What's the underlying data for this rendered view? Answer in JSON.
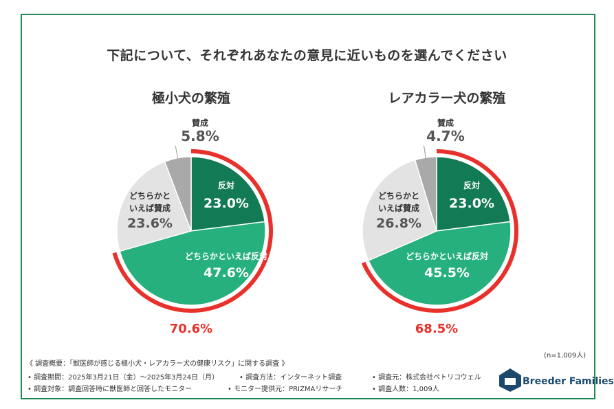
{
  "main_title": "下記について、それぞれあなたの意見に近いものを選んでください",
  "sample_size": "(n=1,009人)",
  "colors": {
    "frame": "#1f8a55",
    "hantai": "#127a55",
    "dochira_hantai": "#26b07d",
    "dochira_sansei": "#e3e3e3",
    "sansei": "#a9a9a9",
    "highlight": "#e8312b",
    "logo": "#1c4a6e"
  },
  "chart_data": [
    {
      "type": "pie",
      "title": "極小犬の繁殖",
      "slices": [
        {
          "label": "反対",
          "value": 23.0,
          "value_text": "23.0%"
        },
        {
          "label": "どちらかといえば反対",
          "value": 47.6,
          "value_text": "47.6%"
        },
        {
          "label": "どちらかと\nいえば賛成",
          "value": 23.6,
          "value_text": "23.6%"
        },
        {
          "label": "賛成",
          "value": 5.8,
          "value_text": "5.8%"
        }
      ],
      "highlight_total": 70.6,
      "highlight_text": "70.6%"
    },
    {
      "type": "pie",
      "title": "レアカラー犬の繁殖",
      "slices": [
        {
          "label": "反対",
          "value": 23.0,
          "value_text": "23.0%"
        },
        {
          "label": "どちらかといえば反対",
          "value": 45.5,
          "value_text": "45.5%"
        },
        {
          "label": "どちらかと\nいえば賛成",
          "value": 26.8,
          "value_text": "26.8%"
        },
        {
          "label": "賛成",
          "value": 4.7,
          "value_text": "4.7%"
        }
      ],
      "highlight_total": 68.5,
      "highlight_text": "68.5%"
    }
  ],
  "footer": {
    "summary": "《 調査概要：「獣医師が感じる極小犬・レアカラー犬の健康リスク」に関する調査 》",
    "period": "• 調査期間：2025年3月21日（金）〜2025年3月24日（月）",
    "method": "• 調査方法：インターネット調査",
    "source": "• 調査元：株式会社ペトリコウェル",
    "target": "• 調査対象：調査回答時に獣医師と回答したモニター",
    "provider": "• モニター提供元：PRIZMAリサーチ",
    "count": "• 調査人数：1,009人"
  },
  "logo": {
    "text": "Breeder Families"
  }
}
